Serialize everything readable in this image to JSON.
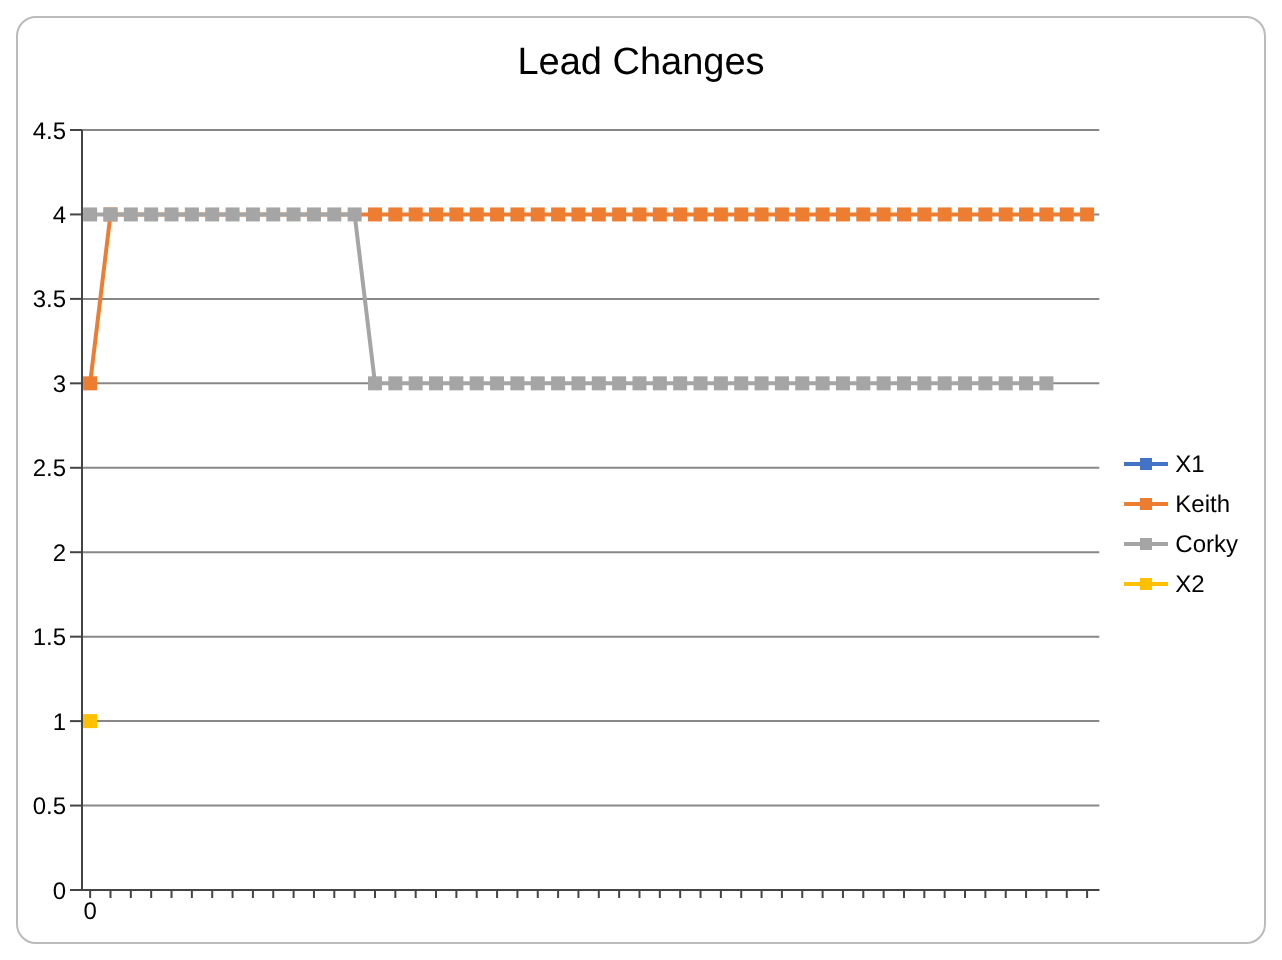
{
  "chart_data": {
    "type": "line",
    "title": "Lead Changes",
    "categories": [
      "0",
      null,
      null,
      null,
      null,
      null,
      null,
      null,
      null,
      null,
      null,
      null,
      null,
      null,
      null,
      null,
      null,
      null,
      null,
      null,
      null,
      null,
      null,
      null,
      null,
      null,
      null,
      null,
      null,
      null,
      null,
      null,
      null,
      null,
      null,
      null,
      null,
      null,
      null,
      null,
      null,
      null,
      null,
      null,
      null,
      null,
      null,
      null,
      null,
      null
    ],
    "series": [
      {
        "name": "X1",
        "color": "#4472c4",
        "values": [
          null,
          null,
          null,
          null,
          null,
          null,
          null,
          null,
          null,
          null,
          null,
          null,
          null,
          null,
          null,
          null,
          null,
          null,
          null,
          null,
          null,
          null,
          null,
          null,
          null,
          null,
          null,
          null,
          null,
          null,
          null,
          null,
          null,
          null,
          null,
          null,
          null,
          null,
          null,
          null,
          null,
          null,
          null,
          null,
          null,
          null,
          null,
          null,
          null,
          null
        ]
      },
      {
        "name": "Keith",
        "color": "#ed7d31",
        "values": [
          3,
          4,
          null,
          null,
          null,
          null,
          null,
          null,
          null,
          null,
          null,
          null,
          null,
          null,
          4,
          4,
          4,
          4,
          4,
          4,
          4,
          4,
          4,
          4,
          4,
          4,
          4,
          4,
          4,
          4,
          4,
          4,
          4,
          4,
          4,
          4,
          4,
          4,
          4,
          4,
          4,
          4,
          4,
          4,
          4,
          4,
          4,
          4,
          4,
          4
        ]
      },
      {
        "name": "Corky",
        "color": "#a5a5a5",
        "values": [
          4,
          4,
          4,
          4,
          4,
          4,
          4,
          4,
          4,
          4,
          4,
          4,
          4,
          4,
          3,
          3,
          3,
          3,
          3,
          3,
          3,
          3,
          3,
          3,
          3,
          3,
          3,
          3,
          3,
          3,
          3,
          3,
          3,
          3,
          3,
          3,
          3,
          3,
          3,
          3,
          3,
          3,
          3,
          3,
          3,
          3,
          3,
          3,
          null,
          null
        ]
      },
      {
        "name": "X2",
        "color": "#ffc000",
        "values": [
          1,
          null,
          null,
          null,
          null,
          null,
          null,
          null,
          null,
          null,
          null,
          null,
          null,
          null,
          null,
          null,
          null,
          null,
          null,
          null,
          null,
          null,
          null,
          null,
          null,
          null,
          null,
          null,
          null,
          null,
          null,
          null,
          null,
          null,
          null,
          null,
          null,
          null,
          null,
          null,
          null,
          null,
          null,
          null,
          null,
          null,
          null,
          null,
          null,
          null
        ]
      }
    ],
    "ylim": [
      0,
      4.5
    ],
    "yticks": [
      0,
      0.5,
      1,
      1.5,
      2,
      2.5,
      3,
      3.5,
      4,
      4.5
    ],
    "grid": "y",
    "legend": "right",
    "marker": "square",
    "line_style": "solid"
  }
}
